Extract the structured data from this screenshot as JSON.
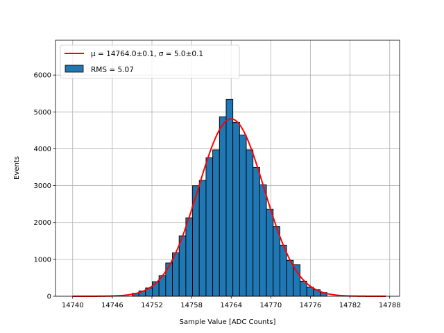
{
  "chart_data": {
    "type": "bar",
    "xlabel": "Sample Value [ADC Counts]",
    "ylabel": "Events",
    "xlim": [
      14737.4,
      14789.5
    ],
    "ylim": [
      0,
      6944
    ],
    "grid": true,
    "legend_placement": "top-left",
    "xticks": [
      "14740",
      "14746",
      "14752",
      "14758",
      "14764",
      "14770",
      "14776",
      "14782",
      "14788"
    ],
    "yticks": [
      "0",
      "1000",
      "2000",
      "3000",
      "4000",
      "5000",
      "6000"
    ],
    "histogram": {
      "name": "RMS = 5.07",
      "color": "#1f77b4",
      "bin_start": 14749.0,
      "bin_width": 1.017,
      "values": [
        81,
        145,
        226,
        395,
        559,
        903,
        1180,
        1637,
        2126,
        2998,
        3143,
        3758,
        3971,
        4868,
        5338,
        4717,
        4372,
        3971,
        3494,
        3023,
        2365,
        1888,
        1386,
        973,
        853,
        408,
        245,
        176,
        100
      ]
    },
    "fit": {
      "name": "μ = 14764.0±0.1, σ = 5.0±0.1",
      "color": "#ff0000",
      "mu": 14764.0,
      "sigma": 5.0,
      "amplitude": 4810,
      "x_range": [
        14740,
        14787.4
      ]
    }
  }
}
